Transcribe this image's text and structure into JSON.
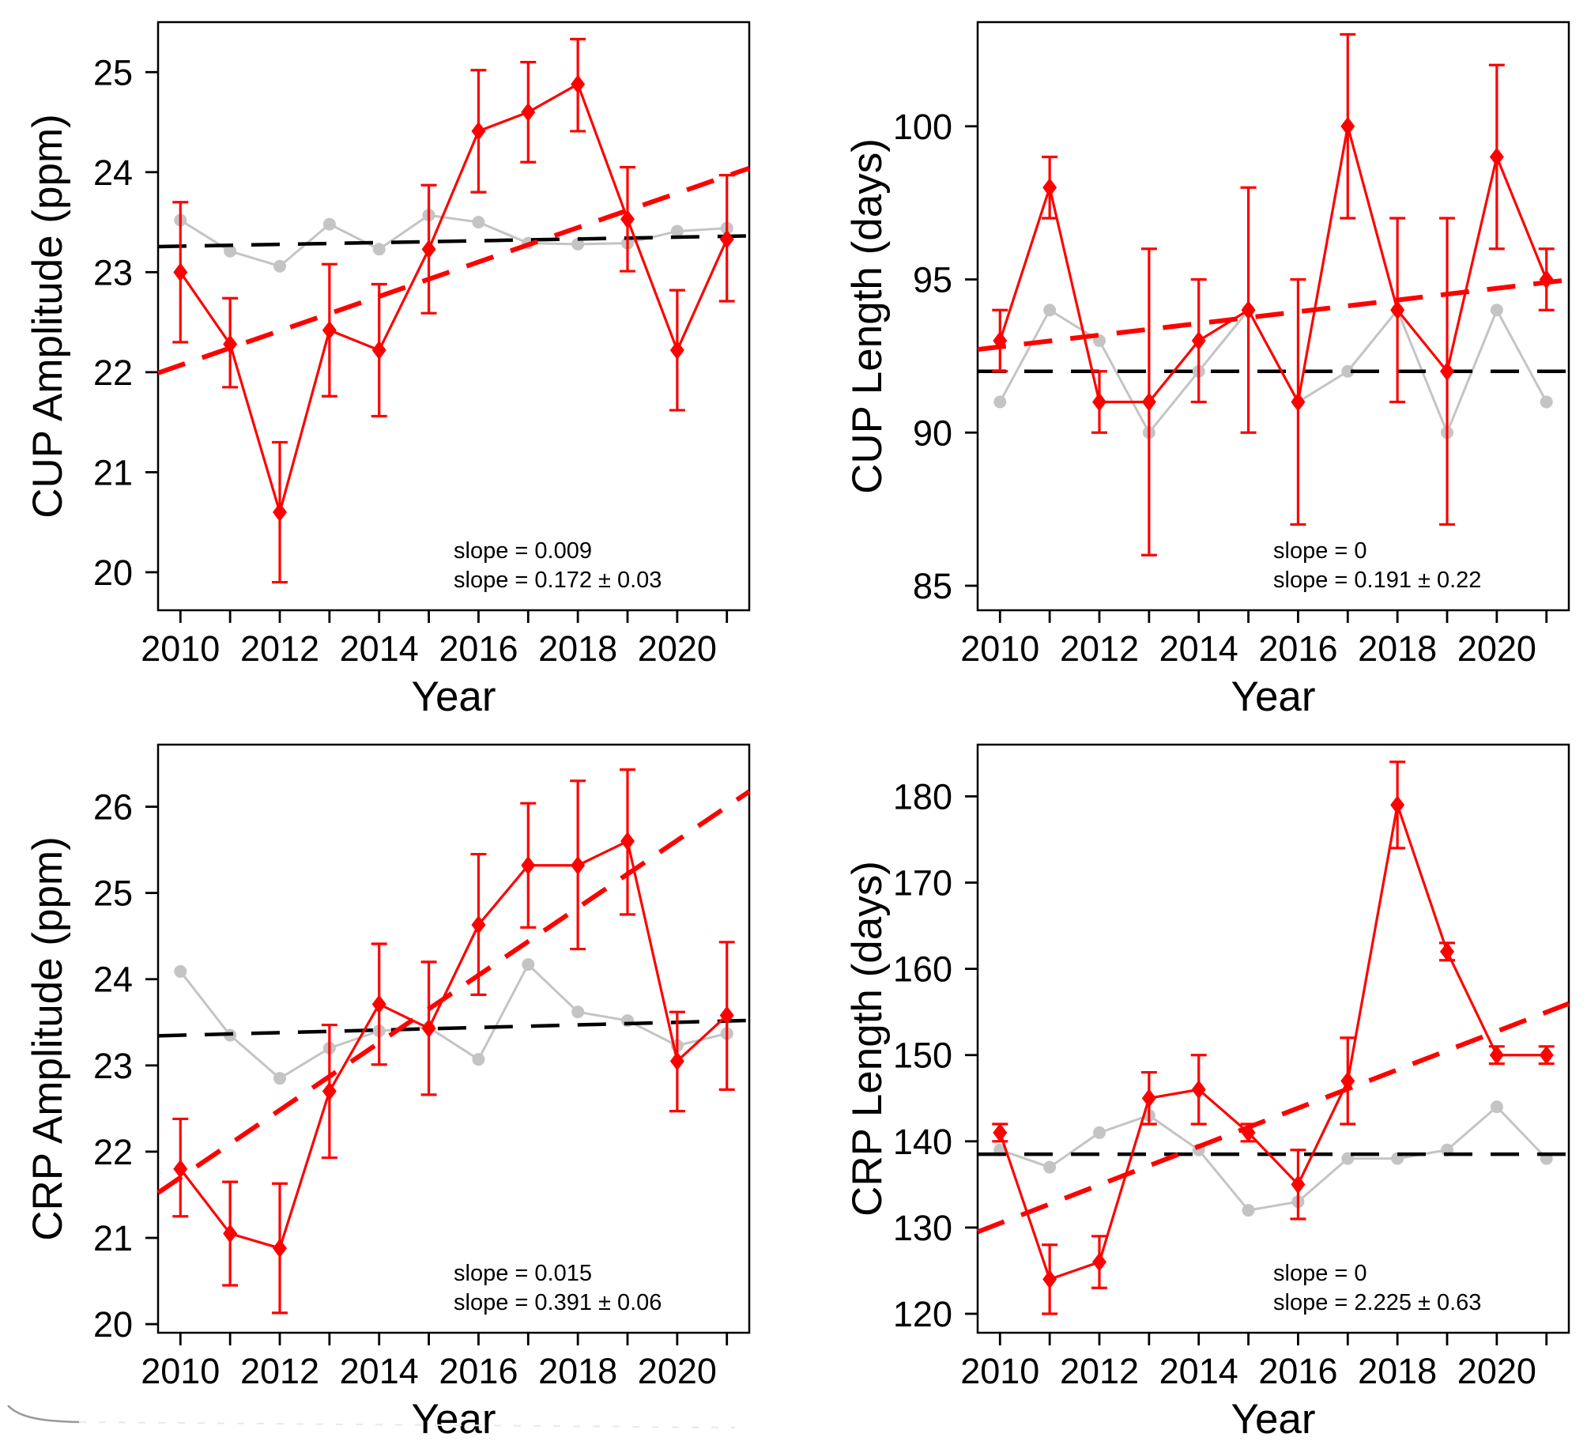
{
  "figure": {
    "background": "#ffffff",
    "accent_red": "#ff0000",
    "series_gray": "#c4c4c4",
    "artifact_mark": {
      "description": "faint stray pen mark at bottom-left corner",
      "color": "#999999"
    }
  },
  "chart_data": [
    {
      "id": "cup-amplitude",
      "type": "line",
      "title": "",
      "xlabel": "Year",
      "ylabel": "CUP Amplitude (ppm)",
      "x": [
        2010,
        2011,
        2012,
        2013,
        2014,
        2015,
        2016,
        2017,
        2018,
        2019,
        2020,
        2021
      ],
      "xtick_label_years": [
        2010,
        2012,
        2014,
        2016,
        2018,
        2020
      ],
      "xtick_labels": [
        "2010",
        "2012",
        "2014",
        "2016",
        "2018",
        "2020"
      ],
      "xlim": [
        2009.55,
        2021.45
      ],
      "ylim": [
        19.62,
        25.5
      ],
      "yticks": [
        20,
        21,
        22,
        23,
        24,
        25
      ],
      "grid": false,
      "legend": "none",
      "series": [
        {
          "name": "gray-reference",
          "color": "#c4c4c4",
          "marker": "circle",
          "values": [
            23.52,
            23.21,
            23.06,
            23.48,
            23.23,
            23.57,
            23.5,
            23.29,
            23.28,
            23.29,
            23.41,
            23.44
          ]
        },
        {
          "name": "red-observed",
          "color": "#ff0000",
          "marker": "diamond",
          "values": [
            23.0,
            22.28,
            20.6,
            22.42,
            22.22,
            23.23,
            24.41,
            24.6,
            24.88,
            23.53,
            22.22,
            23.33
          ],
          "err_lo": [
            22.3,
            21.85,
            19.9,
            21.76,
            21.56,
            22.59,
            23.8,
            24.1,
            24.41,
            23.01,
            21.62,
            22.71
          ],
          "err_hi": [
            23.7,
            22.74,
            21.3,
            23.08,
            22.88,
            23.87,
            25.02,
            25.1,
            25.33,
            24.05,
            22.82,
            23.97
          ]
        }
      ],
      "trends": [
        {
          "name": "black-trend",
          "color": "#000000",
          "style": "dashed",
          "value_at_2010": 23.26,
          "slope_per_year": 0.009,
          "label": "slope = 0.009"
        },
        {
          "name": "red-trend",
          "color": "#ff0000",
          "style": "dashed",
          "value_at_2010": 22.07,
          "slope_per_year": 0.172,
          "label": "slope = 0.172 ± 0.03"
        }
      ]
    },
    {
      "id": "cup-length",
      "type": "line",
      "title": "",
      "xlabel": "Year",
      "ylabel": "CUP Length (days)",
      "x": [
        2010,
        2011,
        2012,
        2013,
        2014,
        2015,
        2016,
        2017,
        2018,
        2019,
        2020,
        2021
      ],
      "xtick_label_years": [
        2010,
        2012,
        2014,
        2016,
        2018,
        2020
      ],
      "xtick_labels": [
        "2010",
        "2012",
        "2014",
        "2016",
        "2018",
        "2020"
      ],
      "xlim": [
        2009.55,
        2021.45
      ],
      "ylim": [
        84.2,
        103.4
      ],
      "yticks": [
        85,
        90,
        95,
        100
      ],
      "grid": false,
      "legend": "none",
      "series": [
        {
          "name": "gray-reference",
          "color": "#c4c4c4",
          "marker": "circle",
          "values": [
            91,
            94,
            93,
            90,
            92,
            94,
            91,
            92,
            94,
            90,
            94,
            91
          ]
        },
        {
          "name": "red-observed",
          "color": "#ff0000",
          "marker": "diamond",
          "values": [
            93,
            98,
            91,
            91,
            93,
            94,
            91,
            100,
            94,
            92,
            99,
            95
          ],
          "err_lo": [
            92,
            97,
            90,
            86,
            91,
            90,
            87,
            97,
            91,
            87,
            96,
            94
          ],
          "err_hi": [
            94,
            99,
            92,
            96,
            95,
            98,
            95,
            103,
            97,
            97,
            102,
            96
          ]
        }
      ],
      "trends": [
        {
          "name": "black-trend",
          "color": "#000000",
          "style": "dashed",
          "value_at_2010": 92,
          "slope_per_year": 0,
          "label": "slope = 0"
        },
        {
          "name": "red-trend",
          "color": "#ff0000",
          "style": "dashed",
          "value_at_2010": 92.8,
          "slope_per_year": 0.191,
          "label": "slope = 0.191 ± 0.22"
        }
      ]
    },
    {
      "id": "crp-amplitude",
      "type": "line",
      "title": "",
      "xlabel": "Year",
      "ylabel": "CRP Amplitude (ppm)",
      "x": [
        2010,
        2011,
        2012,
        2013,
        2014,
        2015,
        2016,
        2017,
        2018,
        2019,
        2020,
        2021
      ],
      "xtick_label_years": [
        2010,
        2012,
        2014,
        2016,
        2018,
        2020
      ],
      "xtick_labels": [
        "2010",
        "2012",
        "2014",
        "2016",
        "2018",
        "2020"
      ],
      "xlim": [
        2009.55,
        2021.45
      ],
      "ylim": [
        19.9,
        26.72
      ],
      "yticks": [
        20,
        21,
        22,
        23,
        24,
        25,
        26
      ],
      "grid": false,
      "legend": "none",
      "series": [
        {
          "name": "gray-reference",
          "color": "#c4c4c4",
          "marker": "circle",
          "values": [
            24.09,
            23.35,
            22.85,
            23.2,
            23.4,
            23.44,
            23.07,
            24.17,
            23.62,
            23.52,
            23.23,
            23.37
          ]
        },
        {
          "name": "red-observed",
          "color": "#ff0000",
          "marker": "diamond",
          "values": [
            21.8,
            21.05,
            20.88,
            22.7,
            23.71,
            23.43,
            24.63,
            25.32,
            25.32,
            25.6,
            23.05,
            23.58
          ],
          "err_lo": [
            21.25,
            20.45,
            20.13,
            21.93,
            23.01,
            22.66,
            23.82,
            24.6,
            24.35,
            24.75,
            22.47,
            22.72
          ],
          "err_hi": [
            22.38,
            21.65,
            21.63,
            23.47,
            24.41,
            24.2,
            25.45,
            26.04,
            26.3,
            26.43,
            23.62,
            24.43
          ]
        }
      ],
      "trends": [
        {
          "name": "black-trend",
          "color": "#000000",
          "style": "dashed",
          "value_at_2010": 23.35,
          "slope_per_year": 0.015,
          "label": "slope = 0.015"
        },
        {
          "name": "red-trend",
          "color": "#ff0000",
          "style": "dashed",
          "value_at_2010": 21.7,
          "slope_per_year": 0.391,
          "label": "slope = 0.391 ± 0.06"
        }
      ]
    },
    {
      "id": "crp-length",
      "type": "line",
      "title": "",
      "xlabel": "Year",
      "ylabel": "CRP Length (days)",
      "x": [
        2010,
        2011,
        2012,
        2013,
        2014,
        2015,
        2016,
        2017,
        2018,
        2019,
        2020,
        2021
      ],
      "xtick_label_years": [
        2010,
        2012,
        2014,
        2016,
        2018,
        2020
      ],
      "xtick_labels": [
        "2010",
        "2012",
        "2014",
        "2016",
        "2018",
        "2020"
      ],
      "xlim": [
        2009.55,
        2021.45
      ],
      "ylim": [
        117.8,
        186.0
      ],
      "yticks": [
        120,
        130,
        140,
        150,
        160,
        170,
        180
      ],
      "grid": false,
      "legend": "none",
      "series": [
        {
          "name": "gray-reference",
          "color": "#c4c4c4",
          "marker": "circle",
          "values": [
            139,
            137,
            141,
            143,
            139,
            132,
            133,
            138,
            138,
            139,
            144,
            138
          ]
        },
        {
          "name": "red-observed",
          "color": "#ff0000",
          "marker": "diamond",
          "values": [
            141,
            124,
            126,
            145,
            146,
            141,
            135,
            147,
            179,
            162,
            150,
            150
          ],
          "err_lo": [
            140,
            120,
            123,
            142,
            142,
            140,
            131,
            142,
            174,
            161,
            149,
            149
          ],
          "err_hi": [
            142,
            128,
            129,
            148,
            150,
            142,
            139,
            152,
            184,
            163,
            151,
            151
          ]
        }
      ],
      "trends": [
        {
          "name": "black-trend",
          "color": "#000000",
          "style": "dashed",
          "value_at_2010": 138.5,
          "slope_per_year": 0,
          "label": "slope = 0"
        },
        {
          "name": "red-trend",
          "color": "#ff0000",
          "style": "dashed",
          "value_at_2010": 130.5,
          "slope_per_year": 2.225,
          "label": "slope = 2.225 ± 0.63"
        }
      ]
    }
  ]
}
